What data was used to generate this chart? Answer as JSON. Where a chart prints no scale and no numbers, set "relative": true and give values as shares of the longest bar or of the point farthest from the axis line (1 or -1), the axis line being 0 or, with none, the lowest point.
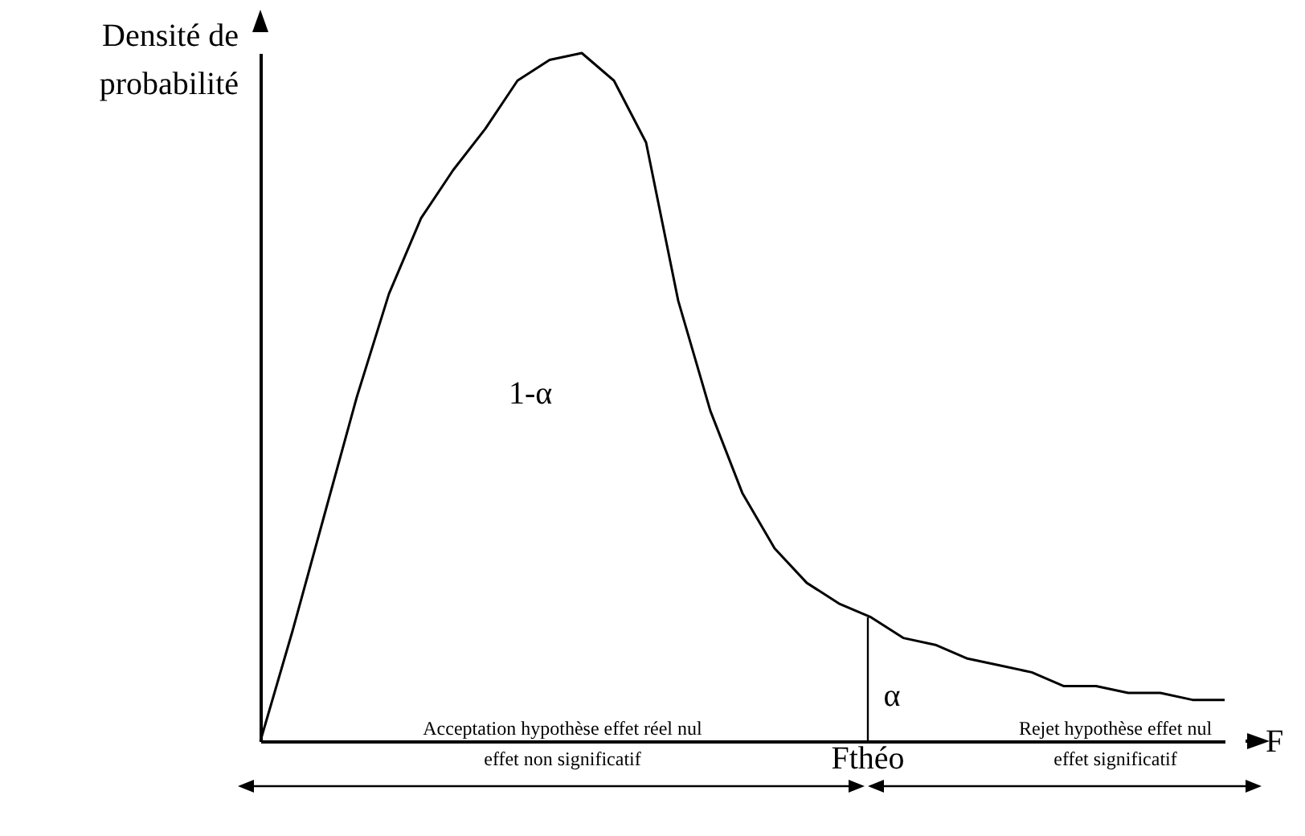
{
  "chart_data": {
    "type": "line",
    "relative": true,
    "xlabel": "F",
    "ylabel": "Densité de probabilité",
    "categories": [
      null,
      null,
      null,
      null,
      null,
      null,
      null,
      null,
      null,
      null,
      null,
      null,
      null,
      null,
      null,
      null,
      null,
      null,
      null,
      null,
      null,
      null,
      null,
      null,
      null,
      null,
      null,
      null,
      null,
      null,
      null
    ],
    "series": [
      {
        "color": "#000000",
        "values": [
          0,
          0.16,
          0.33,
          0.5,
          0.65,
          0.76,
          0.83,
          0.89,
          0.96,
          0.99,
          1,
          0.96,
          0.87,
          0.64,
          0.48,
          0.36,
          0.28,
          0.23,
          0.2,
          0.18,
          0.15,
          0.14,
          0.12,
          0.11,
          0.1,
          0.08,
          0.08,
          0.07,
          0.07,
          0.06,
          0.06
        ]
      }
    ],
    "annotations": [
      "1-α",
      "α",
      "Acceptation hypothèse effet réel nul",
      "effet non significatif",
      "Rejet hypothèse effet nul",
      "effet significatif",
      "Fthéo"
    ]
  }
}
